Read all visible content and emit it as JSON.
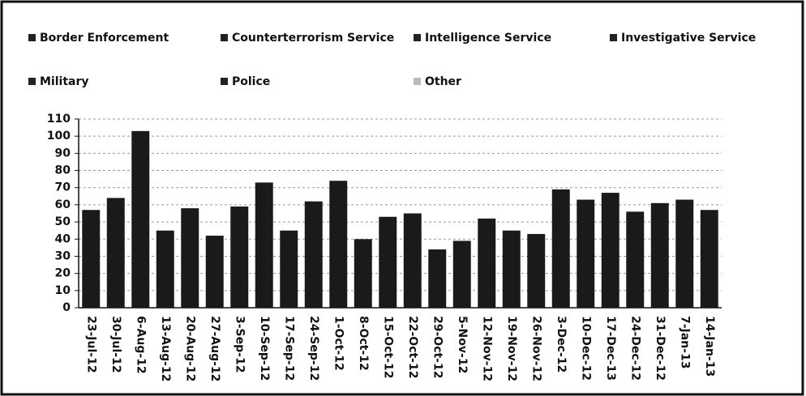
{
  "chart_data": {
    "type": "bar",
    "legend": [
      {
        "name": "Border Enforcement",
        "color": "#222222"
      },
      {
        "name": "Counterterrorism Service",
        "color": "#222222"
      },
      {
        "name": "Intelligence Service",
        "color": "#222222"
      },
      {
        "name": "Investigative Service",
        "color": "#222222"
      },
      {
        "name": "Military",
        "color": "#222222"
      },
      {
        "name": "Police",
        "color": "#222222"
      },
      {
        "name": "Other",
        "color": "#bbbbbb"
      }
    ],
    "categories": [
      "23-Jul-12",
      "30-Jul-12",
      "6-Aug-12",
      "13-Aug-12",
      "20-Aug-12",
      "27-Aug-12",
      "3-Sep-12",
      "10-Sep-12",
      "17-Sep-12",
      "24-Sep-12",
      "1-Oct-12",
      "8-Oct-12",
      "15-Oct-12",
      "22-Oct-12",
      "29-Oct-12",
      "5-Nov-12",
      "12-Nov-12",
      "19-Nov-12",
      "26-Nov-12",
      "3-Dec-12",
      "10-Dec-12",
      "17-Dec-13",
      "24-Dec-12",
      "31-Dec-12",
      "7-Jan-13",
      "14-Jan-13"
    ],
    "values": [
      57,
      64,
      103,
      45,
      58,
      42,
      59,
      73,
      45,
      62,
      74,
      40,
      53,
      55,
      34,
      39,
      52,
      45,
      43,
      69,
      63,
      67,
      56,
      61,
      63,
      57
    ],
    "color": "#1a1a1a",
    "ylim": [
      0,
      110
    ],
    "yticks": [
      0,
      10,
      20,
      30,
      40,
      50,
      60,
      70,
      80,
      90,
      100,
      110
    ],
    "grid": true
  }
}
